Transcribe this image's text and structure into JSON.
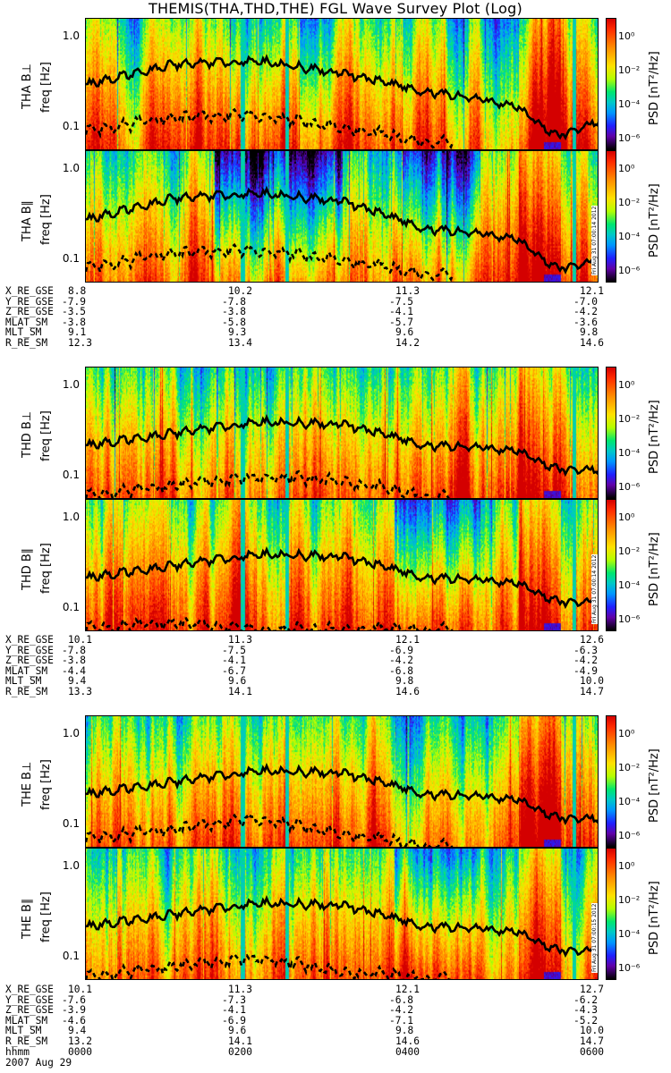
{
  "title": "THEMIS(THA,THD,THE) FGL Wave Survey Plot (Log)",
  "frequency_ticks": [
    "1.0",
    "0.1"
  ],
  "freq_axis_label": "freq [Hz]",
  "colorbar": {
    "label": "PSD [nT²/Hz]",
    "ticks": [
      "10⁰",
      "10⁻²",
      "10⁻⁴",
      "10⁻⁶"
    ],
    "palette": [
      "#d40000",
      "#ff8c00",
      "#ffe100",
      "#00e66e",
      "#00c8c8",
      "#0096ff",
      "#6000a8",
      "#000000"
    ]
  },
  "panels": [
    {
      "id": "tha-bperp",
      "probe_label": "THA B⊥",
      "stamp": "",
      "seed": 11,
      "profile": "tha",
      "component": "perp"
    },
    {
      "id": "tha-bpar",
      "probe_label": "THA B∥",
      "stamp": "Fri Aug 31 07:00:14 2012",
      "seed": 23,
      "profile": "tha",
      "component": "par"
    },
    {
      "id": "thd-bperp",
      "probe_label": "THD B⊥",
      "stamp": "",
      "seed": 37,
      "profile": "thd",
      "component": "perp"
    },
    {
      "id": "thd-bpar",
      "probe_label": "THD B∥",
      "stamp": "Fri Aug 31 07:00:14 2012",
      "seed": 41,
      "profile": "thd",
      "component": "par"
    },
    {
      "id": "the-bperp",
      "probe_label": "THE B⊥",
      "stamp": "",
      "seed": 53,
      "profile": "the",
      "component": "perp"
    },
    {
      "id": "the-bpar",
      "probe_label": "THE B∥",
      "stamp": "Fri Aug 31 07:00:15 2012",
      "seed": 67,
      "profile": "the",
      "component": "par"
    }
  ],
  "ephemeris": [
    {
      "probe": "THA",
      "rows": [
        {
          "label": "X_RE_GSE",
          "values": [
            "8.8",
            "10.2",
            "11.3",
            "12.1"
          ]
        },
        {
          "label": "Y_RE_GSE",
          "values": [
            "-7.9",
            "-7.8",
            "-7.5",
            "-7.0"
          ]
        },
        {
          "label": "Z_RE_GSE",
          "values": [
            "-3.5",
            "-3.8",
            "-4.1",
            "-4.2"
          ]
        },
        {
          "label": "MLAT_SM",
          "values": [
            "-3.8",
            "-5.8",
            "-5.7",
            "-3.6"
          ]
        },
        {
          "label": "MLT_SM",
          "values": [
            "9.1",
            "9.3",
            "9.6",
            "9.8"
          ]
        },
        {
          "label": "R_RE_SM",
          "values": [
            "12.3",
            "13.4",
            "14.2",
            "14.6"
          ]
        }
      ]
    },
    {
      "probe": "THD",
      "rows": [
        {
          "label": "X_RE_GSE",
          "values": [
            "10.1",
            "11.3",
            "12.1",
            "12.6"
          ]
        },
        {
          "label": "Y_RE_GSE",
          "values": [
            "-7.8",
            "-7.5",
            "-6.9",
            "-6.3"
          ]
        },
        {
          "label": "Z_RE_GSE",
          "values": [
            "-3.8",
            "-4.1",
            "-4.2",
            "-4.2"
          ]
        },
        {
          "label": "MLAT_SM",
          "values": [
            "-4.4",
            "-6.7",
            "-6.8",
            "-4.9"
          ]
        },
        {
          "label": "MLT_SM",
          "values": [
            "9.4",
            "9.6",
            "9.8",
            "10.0"
          ]
        },
        {
          "label": "R_RE_SM",
          "values": [
            "13.3",
            "14.1",
            "14.6",
            "14.7"
          ]
        }
      ]
    },
    {
      "probe": "THE",
      "rows": [
        {
          "label": "X_RE_GSE",
          "values": [
            "10.1",
            "11.3",
            "12.1",
            "12.7"
          ]
        },
        {
          "label": "Y_RE_GSE",
          "values": [
            "-7.6",
            "-7.3",
            "-6.8",
            "-6.2"
          ]
        },
        {
          "label": "Z_RE_GSE",
          "values": [
            "-3.9",
            "-4.1",
            "-4.2",
            "-4.3"
          ]
        },
        {
          "label": "MLAT_SM",
          "values": [
            "-4.6",
            "-6.9",
            "-7.1",
            "-5.2"
          ]
        },
        {
          "label": "MLT_SM",
          "values": [
            "9.4",
            "9.6",
            "9.8",
            "10.0"
          ]
        },
        {
          "label": "R_RE_SM",
          "values": [
            "13.2",
            "14.1",
            "14.6",
            "14.7"
          ]
        }
      ]
    }
  ],
  "time_row": {
    "label": "hhmm",
    "values": [
      "0000",
      "0200",
      "0400",
      "0600"
    ]
  },
  "date": "2007 Aug 29",
  "chart_data": {
    "type": "heatmap",
    "title": "THEMIS(THA,THD,THE) FGL Wave Survey Plot (Log)",
    "xlabel": "hhmm",
    "ylabel": "freq [Hz]",
    "x_ticks": [
      "0000",
      "0200",
      "0400",
      "0600"
    ],
    "xlim": [
      "0000",
      "0600"
    ],
    "y_scale": "log",
    "y_ticks": [
      1.0,
      0.1
    ],
    "ylim": [
      0.055,
      1.6
    ],
    "colorbar_label": "PSD [nT²/Hz]",
    "colorbar_scale": "log",
    "colorbar_range": [
      1e-07,
      10
    ],
    "colorbar_ticks": [
      "10⁰",
      "10⁻²",
      "10⁻⁴",
      "10⁻⁶"
    ],
    "series": [
      {
        "name": "THA B⊥",
        "solid_line_hz_at_hours": {
          "0": 0.3,
          "1": 0.5,
          "2": 0.55,
          "3": 0.4,
          "4": 0.25,
          "5": 0.18,
          "5.5": 0.08,
          "6": 0.12
        },
        "dashed_line_hz_at_hours": {
          "0": 0.09,
          "1": 0.13,
          "2": 0.14,
          "3": 0.1,
          "4": 0.07
        }
      },
      {
        "name": "THA B∥",
        "solid_line_hz_at_hours": {
          "0": 0.28,
          "1": 0.48,
          "2": 0.55,
          "3": 0.45,
          "4": 0.22,
          "5": 0.18,
          "5.5": 0.08,
          "6": 0.1
        },
        "dashed_line_hz_at_hours": {
          "0": 0.08,
          "1": 0.12,
          "2": 0.13,
          "3": 0.1,
          "4": 0.07
        }
      },
      {
        "name": "THD B⊥",
        "solid_line_hz_at_hours": {
          "0": 0.22,
          "1": 0.3,
          "2": 0.4,
          "3": 0.38,
          "4": 0.22,
          "5": 0.2,
          "5.5": 0.12,
          "6": 0.12
        },
        "dashed_line_hz_at_hours": {
          "0": 0.06,
          "1": 0.08,
          "2": 0.1,
          "3": 0.09,
          "4": 0.06
        }
      },
      {
        "name": "THD B∥",
        "solid_line_hz_at_hours": {
          "0": 0.22,
          "1": 0.3,
          "2": 0.4,
          "3": 0.38,
          "4": 0.22,
          "5": 0.2,
          "5.5": 0.12,
          "6": 0.12
        },
        "dashed_line_hz_at_hours": {
          "0": 0.06,
          "1": 0.07,
          "2": 0.06,
          "3": 0.06,
          "4": 0.06
        }
      },
      {
        "name": "THE B⊥",
        "solid_line_hz_at_hours": {
          "0": 0.22,
          "1": 0.3,
          "2": 0.4,
          "3": 0.38,
          "4": 0.22,
          "5": 0.2,
          "5.5": 0.12,
          "6": 0.12
        },
        "dashed_line_hz_at_hours": {
          "0": 0.07,
          "1": 0.09,
          "2": 0.12,
          "3": 0.08,
          "4": 0.06
        }
      },
      {
        "name": "THE B∥",
        "solid_line_hz_at_hours": {
          "0": 0.22,
          "1": 0.3,
          "2": 0.4,
          "3": 0.38,
          "4": 0.22,
          "5": 0.2,
          "5.5": 0.12,
          "6": 0.12
        },
        "dashed_line_hz_at_hours": {
          "0": 0.06,
          "1": 0.08,
          "2": 0.1,
          "3": 0.07,
          "4": 0.06
        }
      }
    ]
  }
}
